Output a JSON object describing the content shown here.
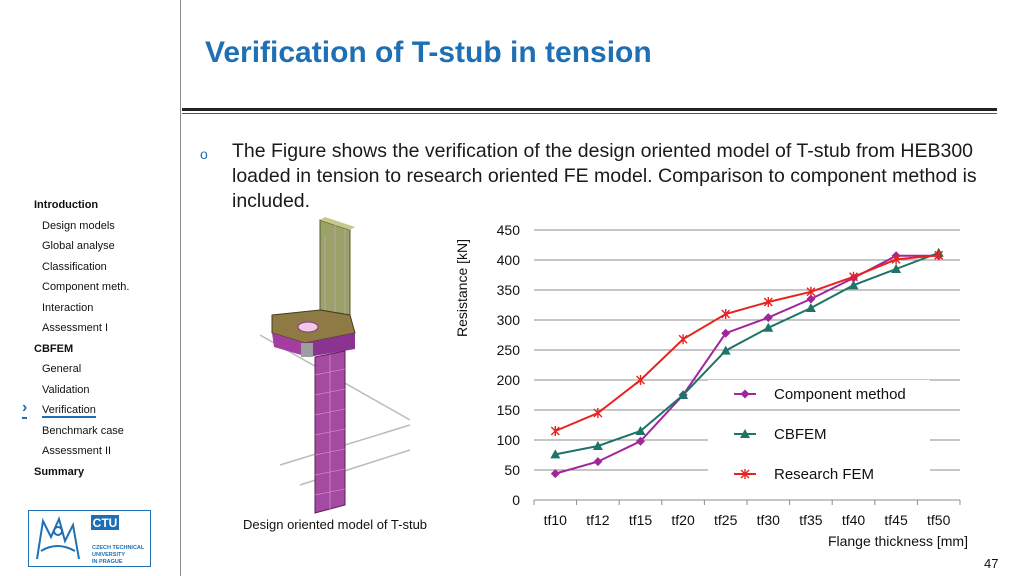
{
  "slide": {
    "title": "Verification of T-stub in tension",
    "body": "The Figure shows the verification of the design oriented model of T-stub from HEB300 loaded in tension to research oriented FE model. Comparison to component method is included.",
    "bullet_glyph": "o",
    "page_number": "47",
    "model_caption": "Design oriented model of T-stub"
  },
  "nav": {
    "active_marker": "›",
    "items": [
      {
        "label": "Introduction",
        "level": "section"
      },
      {
        "label": "Design models",
        "level": "sub"
      },
      {
        "label": "Global analyse",
        "level": "sub"
      },
      {
        "label": "Classification",
        "level": "sub"
      },
      {
        "label": "Component meth.",
        "level": "sub"
      },
      {
        "label": "Interaction",
        "level": "sub"
      },
      {
        "label": "Assessment I",
        "level": "sub"
      },
      {
        "label": "CBFEM",
        "level": "section"
      },
      {
        "label": "General",
        "level": "sub"
      },
      {
        "label": "Validation",
        "level": "sub"
      },
      {
        "label": "Verification",
        "level": "sub",
        "active": true
      },
      {
        "label": "Benchmark case",
        "level": "sub"
      },
      {
        "label": "Assessment II",
        "level": "sub"
      },
      {
        "label": "Summary",
        "level": "section"
      }
    ]
  },
  "logo": {
    "brand": "CTU",
    "lines": [
      "CZECH TECHNICAL",
      "UNIVERSITY",
      "IN PRAGUE"
    ],
    "color": "#1f6fb4"
  },
  "chart_data": {
    "type": "line",
    "categories": [
      "tf10",
      "tf12",
      "tf15",
      "tf20",
      "tf25",
      "tf30",
      "tf35",
      "tf40",
      "tf45",
      "tf50"
    ],
    "ylabel": "Resistance [kN]",
    "xlabel": "Flange thickness [mm]",
    "ylim": [
      0,
      450
    ],
    "yticks": [
      "0",
      "50",
      "100",
      "150",
      "200",
      "250",
      "300",
      "350",
      "400",
      "450"
    ],
    "grid": true,
    "legend_position": "inside-right",
    "series": [
      {
        "name": "Component method",
        "color": "#a0269c",
        "marker": "diamond",
        "values": [
          44,
          64,
          98,
          175,
          278,
          304,
          335,
          370,
          407,
          407
        ]
      },
      {
        "name": "CBFEM",
        "color": "#1e7468",
        "marker": "triangle",
        "values": [
          76,
          90,
          115,
          175,
          249,
          287,
          320,
          358,
          385,
          412
        ]
      },
      {
        "name": "Research FEM",
        "color": "#e8231f",
        "marker": "star",
        "values": [
          115,
          145,
          200,
          268,
          310,
          330,
          347,
          372,
          401,
          408
        ]
      }
    ]
  }
}
